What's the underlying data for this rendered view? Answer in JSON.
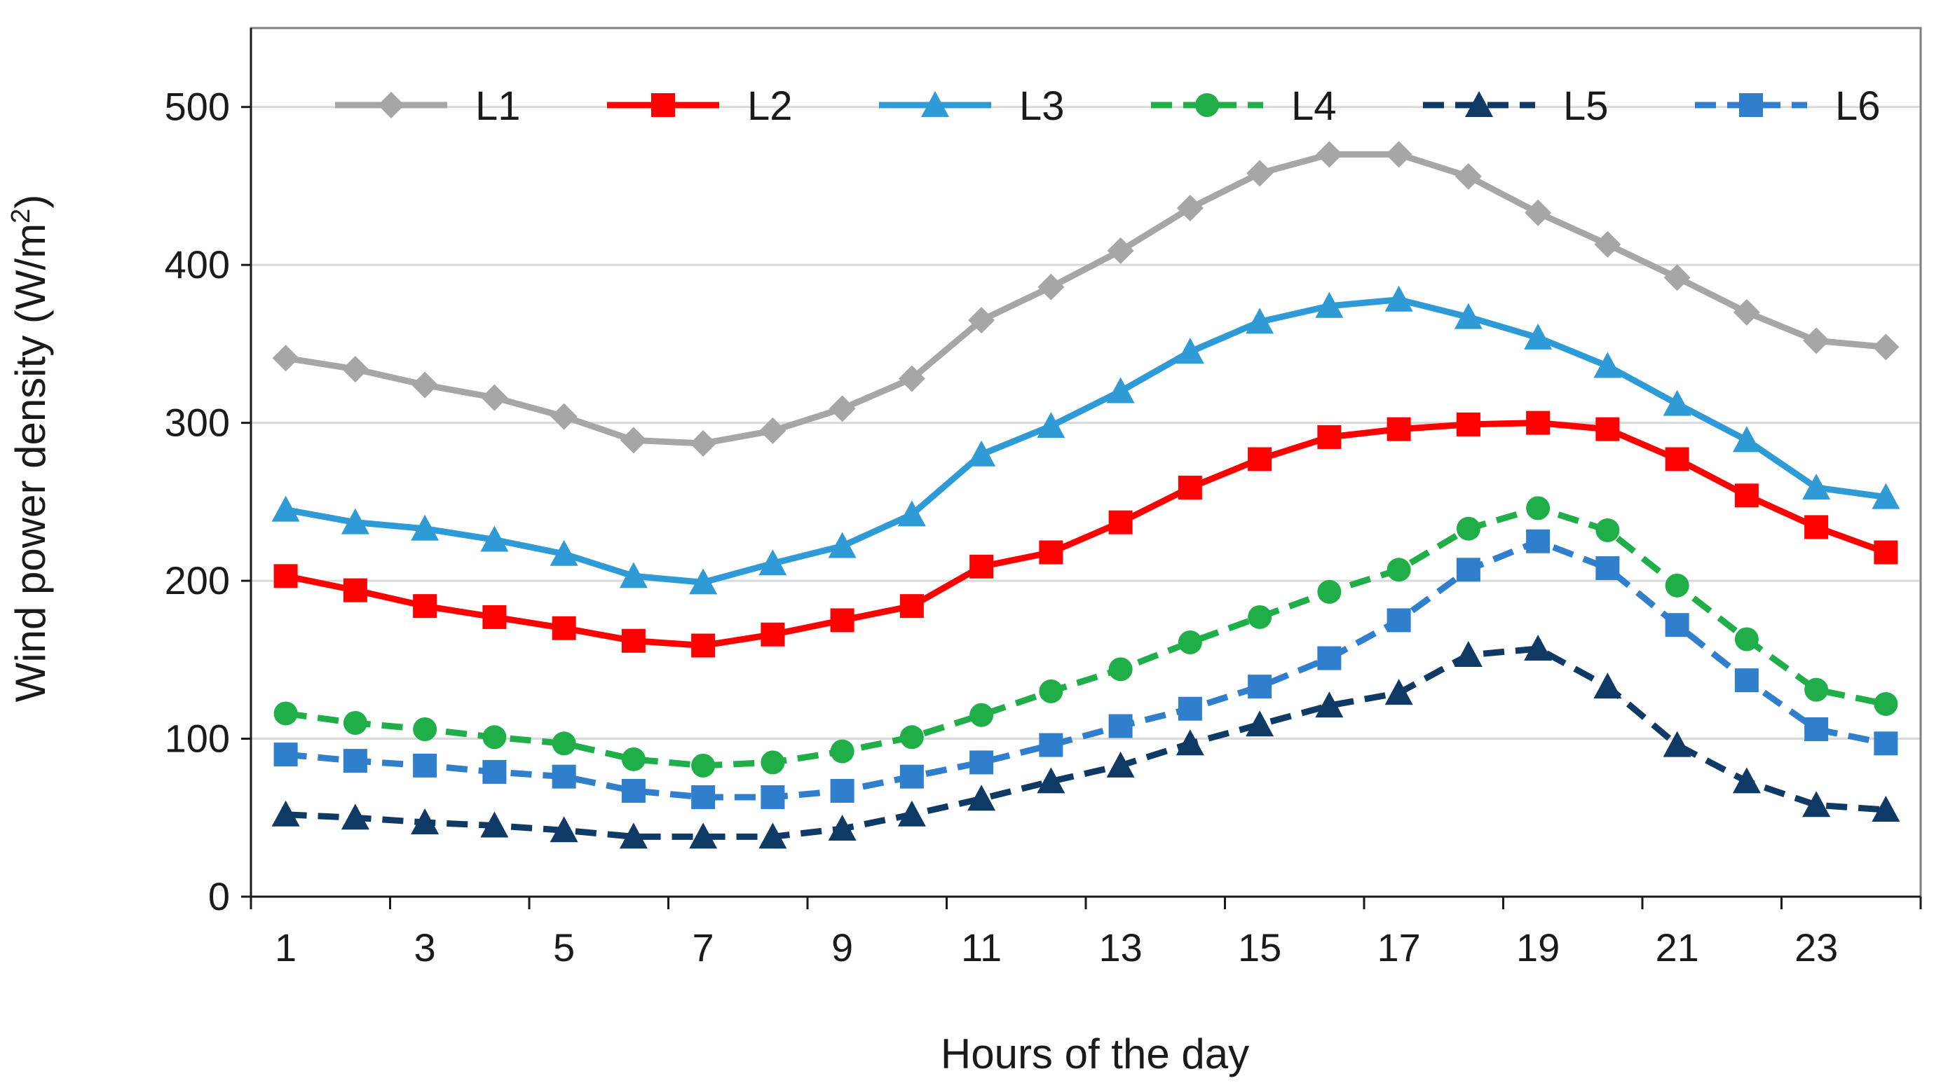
{
  "chart_data": {
    "type": "line",
    "title": "",
    "xlabel": "Hours of the day",
    "ylabel": "Wind power density (W/m",
    "ylabel_superscript": "2",
    "ylabel_close": ")",
    "ylim": [
      0,
      550
    ],
    "xlim": [
      0.5,
      24.5
    ],
    "yticks": [
      0,
      100,
      200,
      300,
      400,
      500
    ],
    "xtick_labels": [
      1,
      3,
      5,
      7,
      9,
      11,
      13,
      15,
      17,
      19,
      21,
      23
    ],
    "grid": "horizontal",
    "legend_position": "top",
    "x": [
      1,
      2,
      3,
      4,
      5,
      6,
      7,
      8,
      9,
      10,
      11,
      12,
      13,
      14,
      15,
      16,
      17,
      18,
      19,
      20,
      21,
      22,
      23,
      24
    ],
    "series": [
      {
        "name": "L1",
        "color": "#a6a6a6",
        "dash": "solid",
        "marker": "diamond",
        "values": [
          341,
          334,
          324,
          316,
          304,
          289,
          287,
          295,
          309,
          328,
          365,
          386,
          409,
          436,
          458,
          470,
          470,
          456,
          433,
          413,
          392,
          370,
          352,
          348
        ]
      },
      {
        "name": "L2",
        "color": "#ff0000",
        "dash": "solid",
        "marker": "square",
        "values": [
          203,
          194,
          184,
          177,
          170,
          162,
          159,
          166,
          175,
          184,
          209,
          218,
          237,
          259,
          277,
          291,
          296,
          299,
          300,
          296,
          277,
          254,
          234,
          218
        ]
      },
      {
        "name": "L3",
        "color": "#2e9bd6",
        "dash": "solid",
        "marker": "triangle",
        "values": [
          245,
          237,
          233,
          226,
          217,
          203,
          199,
          211,
          222,
          242,
          280,
          298,
          320,
          345,
          364,
          374,
          378,
          367,
          354,
          336,
          312,
          289,
          259,
          253
        ]
      },
      {
        "name": "L4",
        "color": "#1fae48",
        "dash": "dashed",
        "marker": "circle",
        "values": [
          116,
          110,
          106,
          101,
          97,
          87,
          83,
          85,
          92,
          101,
          115,
          130,
          144,
          161,
          177,
          193,
          207,
          233,
          246,
          232,
          197,
          163,
          131,
          122
        ]
      },
      {
        "name": "L5",
        "color": "#0f3a66",
        "dash": "dashed",
        "marker": "triangle",
        "values": [
          52,
          50,
          47,
          45,
          42,
          38,
          38,
          38,
          43,
          52,
          62,
          73,
          83,
          97,
          109,
          121,
          129,
          153,
          157,
          133,
          96,
          73,
          58,
          55
        ]
      },
      {
        "name": "L6",
        "color": "#2f7fcc",
        "dash": "dashed",
        "marker": "square",
        "values": [
          90,
          86,
          83,
          79,
          76,
          67,
          63,
          63,
          67,
          76,
          85,
          96,
          108,
          119,
          133,
          151,
          175,
          207,
          225,
          208,
          172,
          137,
          106,
          97
        ]
      }
    ]
  }
}
